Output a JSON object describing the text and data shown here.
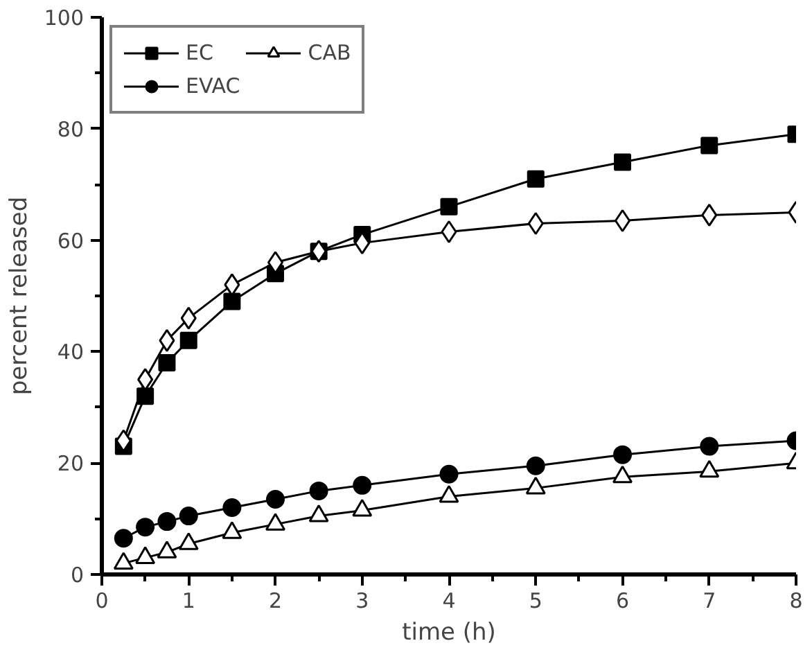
{
  "chart_data": {
    "type": "line",
    "xlabel": "time (h)",
    "ylabel": "percent released",
    "x": [
      0.25,
      0.5,
      0.75,
      1,
      1.5,
      2,
      2.5,
      3,
      4,
      5,
      6,
      7,
      8
    ],
    "series": [
      {
        "name": "EC",
        "color": "#000000",
        "marker": "square",
        "values": [
          23,
          32,
          38,
          42,
          49,
          54,
          58,
          61,
          66,
          71,
          74,
          77,
          79
        ]
      },
      {
        "name": "EVAC",
        "color": "#000000",
        "marker": "circle",
        "values": [
          6.5,
          8.5,
          9.5,
          10.5,
          12,
          13.5,
          15,
          16,
          18,
          19.5,
          21.5,
          23,
          24
        ]
      },
      {
        "color": "#000000",
        "marker": "diamond",
        "values": [
          24,
          35,
          42,
          46,
          52,
          56,
          58,
          59.5,
          61.5,
          63,
          63.5,
          64.5,
          65
        ]
      },
      {
        "name": "CAB",
        "color": "#000000",
        "marker": "triangle",
        "values": [
          2,
          3,
          4,
          5.5,
          7.5,
          9,
          10.5,
          11.5,
          14,
          15.5,
          17.5,
          18.5,
          20
        ]
      }
    ],
    "xlim": [
      0,
      8
    ],
    "ylim": [
      0,
      100
    ],
    "xticks": [
      0,
      1,
      2,
      3,
      4,
      5,
      6,
      7,
      8
    ],
    "yticks": [
      0,
      20,
      40,
      60,
      80,
      100
    ],
    "grid": false,
    "legend": "top left",
    "line_style": "solid"
  }
}
